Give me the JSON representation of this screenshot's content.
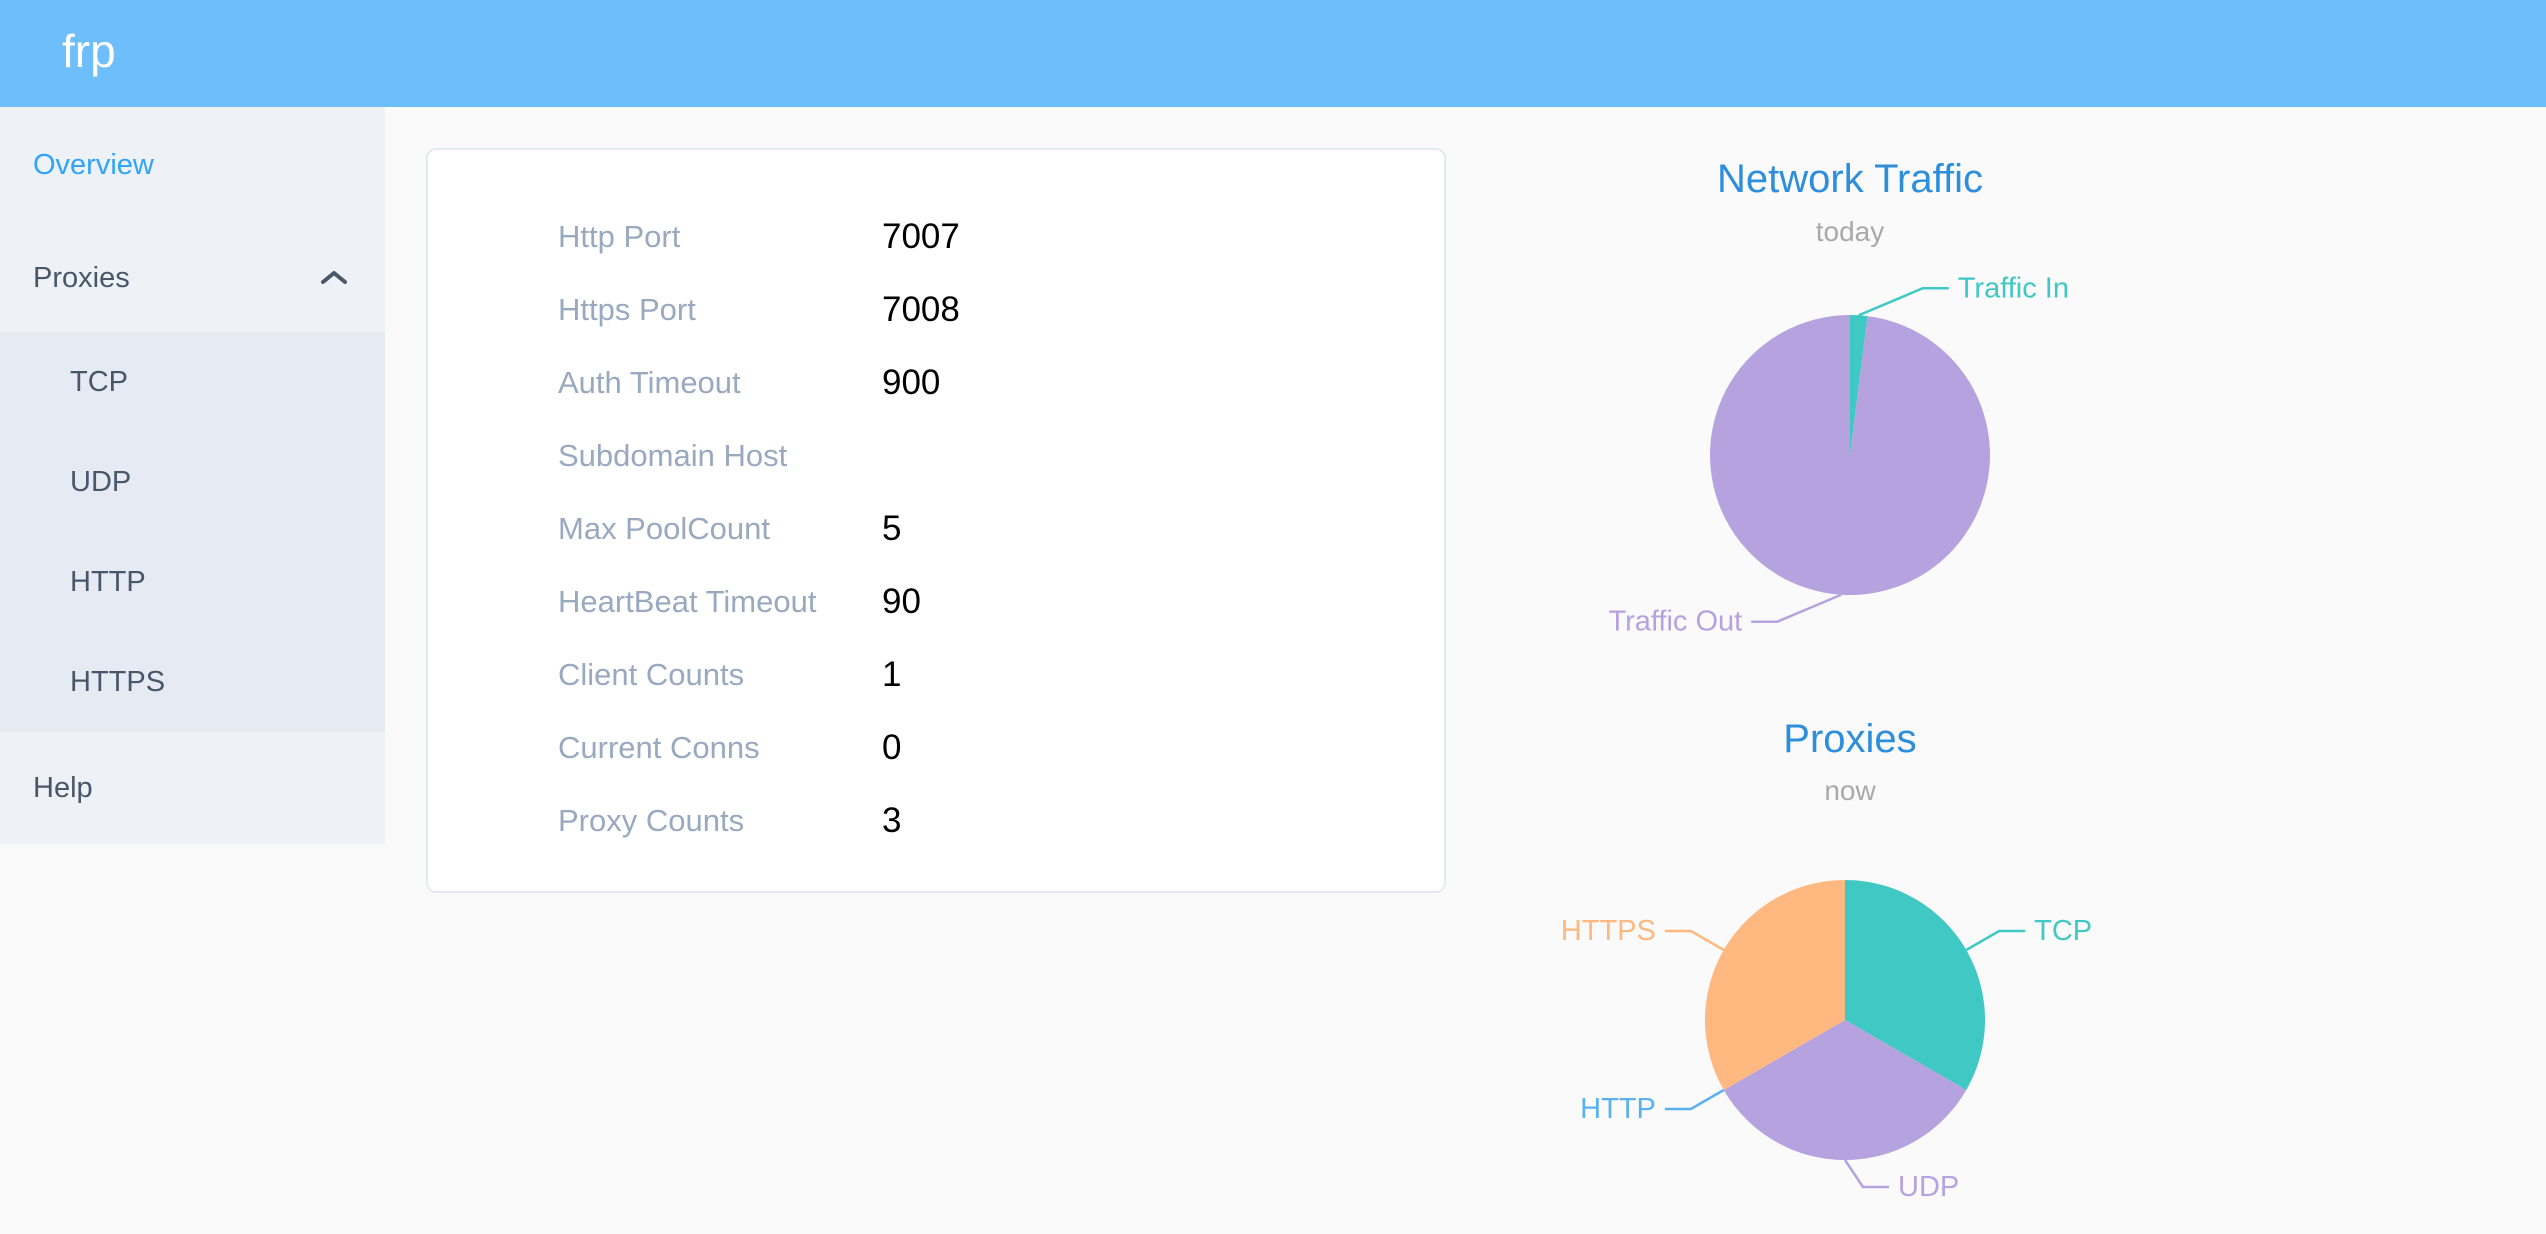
{
  "header": {
    "logo_text": "frp"
  },
  "sidebar": {
    "items": [
      {
        "label": "Overview",
        "active": true
      },
      {
        "label": "Proxies",
        "expanded": true,
        "has_submenu": true
      },
      {
        "label": "TCP",
        "submenu_of": "Proxies"
      },
      {
        "label": "UDP",
        "submenu_of": "Proxies"
      },
      {
        "label": "HTTP",
        "submenu_of": "Proxies"
      },
      {
        "label": "HTTPS",
        "submenu_of": "Proxies"
      },
      {
        "label": "Help"
      }
    ]
  },
  "overview_card": {
    "rows": [
      {
        "label": "Http Port",
        "value": "7007"
      },
      {
        "label": "Https Port",
        "value": "7008"
      },
      {
        "label": "Auth Timeout",
        "value": "900"
      },
      {
        "label": "Subdomain Host",
        "value": ""
      },
      {
        "label": "Max PoolCount",
        "value": "5"
      },
      {
        "label": "HeartBeat Timeout",
        "value": "90"
      },
      {
        "label": "Client Counts",
        "value": "1"
      },
      {
        "label": "Current Conns",
        "value": "0"
      },
      {
        "label": "Proxy Counts",
        "value": "3"
      }
    ]
  },
  "chart_data": [
    {
      "type": "pie",
      "title": "Network Traffic",
      "subtitle": "today",
      "labels": [
        "Traffic In",
        "Traffic Out"
      ],
      "values": [
        2,
        98
      ],
      "colors": [
        "#3fc8c4",
        "#b6a2de"
      ],
      "label_position": "outside",
      "legend": false
    },
    {
      "type": "pie",
      "title": "Proxies",
      "subtitle": "now",
      "labels": [
        "TCP",
        "UDP",
        "HTTP",
        "HTTPS"
      ],
      "values": [
        1,
        1,
        0,
        1
      ],
      "colors": [
        "#3fc8c4",
        "#b6a2de",
        "#5ab1ef",
        "#ffb980"
      ],
      "label_position": "outside",
      "legend": false
    }
  ],
  "colors": {
    "header_bg": "#6dbefa",
    "page_bg": "#fafafa",
    "sidebar_bg": "#eef1f6",
    "submenu_bg": "#e6eaf3",
    "sidebar_text": "#48576a",
    "active_item": "#30a4f8",
    "card_border": "#e5e9f2",
    "row_label": "#99a9bf",
    "row_value": "#000000",
    "chart_title": "#2d8edb",
    "chart_subtitle": "#a9a9a9"
  }
}
